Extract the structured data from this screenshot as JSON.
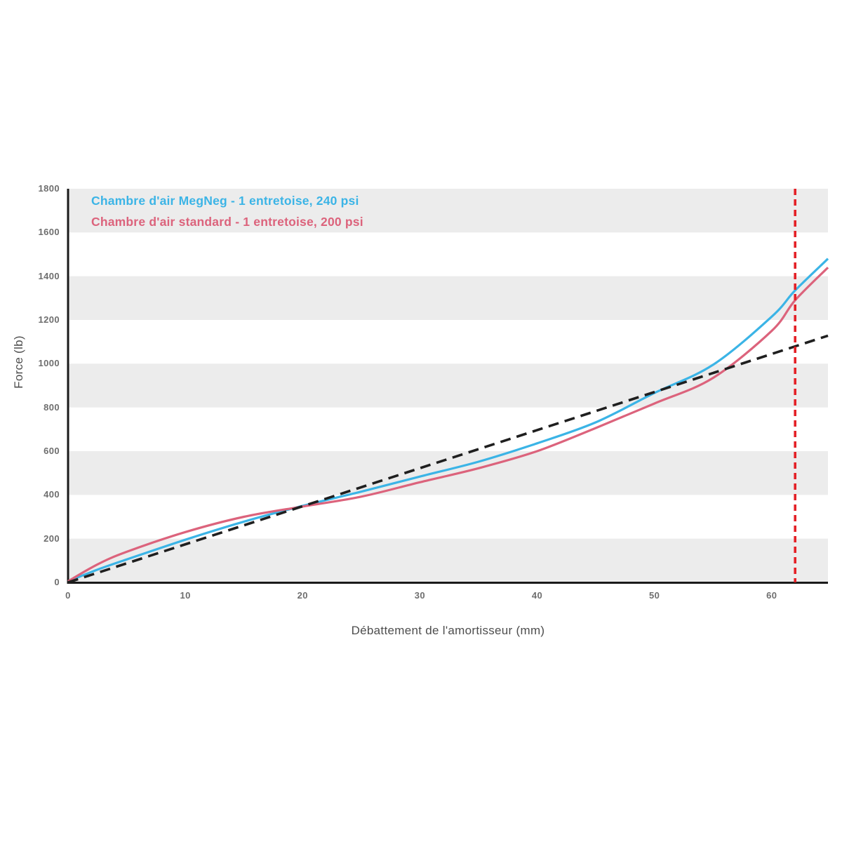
{
  "page": {
    "background": "#ffffff"
  },
  "axes": {
    "tick_color": "#6e6e6e",
    "axis_color": "#1a1a1a",
    "title_color": "#4d4d4d",
    "band_fill": "#ececec"
  },
  "chart_data": {
    "type": "line",
    "title": "",
    "xlabel": "Débattement de l'amortisseur (mm)",
    "ylabel": "Force (lb)",
    "xlim": [
      0,
      64.8
    ],
    "ylim": [
      0,
      1800
    ],
    "x_ticks": [
      0,
      10,
      20,
      30,
      40,
      50,
      60
    ],
    "y_ticks": [
      0,
      200,
      400,
      600,
      800,
      1000,
      1200,
      1400,
      1600,
      1800
    ],
    "grid": "alternating-bands",
    "bands": [
      [
        0,
        200
      ],
      [
        400,
        600
      ],
      [
        800,
        1000
      ],
      [
        1200,
        1400
      ],
      [
        1600,
        1800
      ]
    ],
    "legend_position": "top-left-inside",
    "series": [
      {
        "name": "Chambre d'air MegNeg - 1 entretoise, 240 psi",
        "color": "#3bb4e6",
        "style": "solid",
        "in_legend": true,
        "x": [
          0,
          2.5,
          5,
          10,
          15,
          20,
          25,
          30,
          35,
          40,
          45,
          50,
          55,
          60,
          62,
          64.8
        ],
        "y": [
          5,
          58,
          105,
          195,
          278,
          350,
          415,
          484,
          552,
          636,
          732,
          866,
          995,
          1215,
          1335,
          1480
        ]
      },
      {
        "name": "Chambre d'air standard - 1 entretoise, 200 psi",
        "color": "#dc637c",
        "style": "solid",
        "in_legend": true,
        "x": [
          0,
          2.5,
          5,
          10,
          15,
          20,
          25,
          30,
          35,
          40,
          45,
          50,
          55,
          60,
          62,
          64.8
        ],
        "y": [
          5,
          82,
          140,
          230,
          300,
          347,
          392,
          458,
          522,
          600,
          706,
          818,
          935,
          1150,
          1290,
          1440
        ]
      },
      {
        "name": "",
        "color": "#1f1f1f",
        "style": "dashed",
        "in_legend": false,
        "x": [
          0,
          64.8
        ],
        "y": [
          0,
          1128
        ]
      }
    ],
    "vline": {
      "x": 62,
      "color": "#e42127",
      "style": "dashed"
    }
  }
}
